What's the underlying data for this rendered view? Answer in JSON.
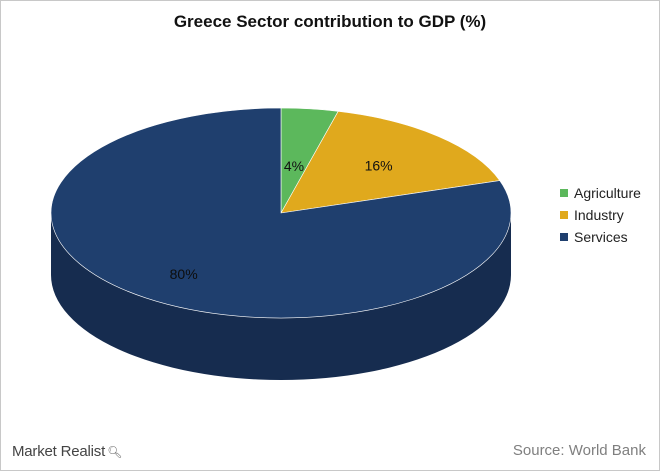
{
  "chart_data": {
    "type": "pie",
    "title": "Greece Sector contribution to GDP (%)",
    "categories": [
      "Agriculture",
      "Industry",
      "Services"
    ],
    "values": [
      4,
      16,
      80
    ],
    "labels": [
      "4%",
      "16%",
      "80%"
    ],
    "colors": [
      "#5cb85c",
      "#e0a91d",
      "#1f3f6e"
    ],
    "side_colors": [
      "#3d8a3d",
      "#a87a0f",
      "#162c4f"
    ],
    "legend_position": "right",
    "three_d": true
  },
  "footer": {
    "brand": "Market Realist",
    "brand_icon": "magnifier-icon",
    "source": "Source: World Bank"
  }
}
